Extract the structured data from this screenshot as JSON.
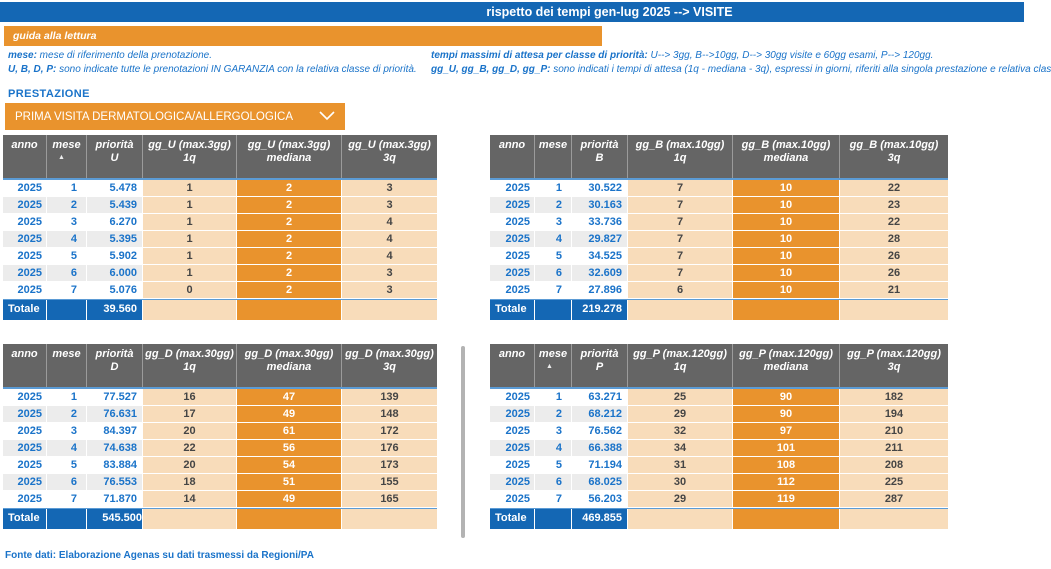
{
  "colors": {
    "blue": "#1467b4",
    "text_blue": "#1a73c9",
    "orange": "#e9932d",
    "peach": "#f8dcba",
    "header_gray": "#656565",
    "alt_row": "#ececec",
    "separator_blue": "#5b9bd5",
    "divider_gray": "#b3b3b3"
  },
  "title_bar": {
    "title": "rispetto dei tempi gen-lug 2025 --> VISITE"
  },
  "guide": {
    "band_label": "guida alla lettura",
    "left_lines": [
      {
        "bold": "mese:",
        "text": " mese di riferimento della prenotazione."
      },
      {
        "bold": "U, B, D, P:",
        "text": " sono indicate tutte le prenotazioni IN GARANZIA con la relativa classe di priorità."
      }
    ],
    "right_lines": [
      {
        "bold": "tempi massimi di attesa per classe di priorità:",
        "text": " U--> 3gg, B-->10gg, D--> 30gg visite e 60gg esami, P--> 120gg."
      },
      {
        "bold": "gg_U, gg_B, gg_D, gg_P:",
        "text": " sono indicati i tempi di attesa (1q - mediana - 3q), espressi in giorni, riferiti alla singola prestazione e relativa clas"
      }
    ]
  },
  "filter": {
    "label": "PRESTAZIONE",
    "selected": "PRIMA VISITA DERMATOLOGICA/ALLERGOLOGICA"
  },
  "tables": [
    {
      "id": "U",
      "headers": [
        {
          "label": "anno"
        },
        {
          "label": "mese",
          "sort_icon": true
        },
        {
          "label": "priorità",
          "sub": "U"
        },
        {
          "label": "gg_U (max.3gg)",
          "sub": "1q"
        },
        {
          "label": "gg_U (max.3gg)",
          "sub": "mediana"
        },
        {
          "label": "gg_U (max.3gg)",
          "sub": "3q"
        }
      ],
      "rows": [
        [
          "2025",
          "1",
          "5.478",
          "1",
          "2",
          "3"
        ],
        [
          "2025",
          "2",
          "5.439",
          "1",
          "2",
          "3"
        ],
        [
          "2025",
          "3",
          "6.270",
          "1",
          "2",
          "4"
        ],
        [
          "2025",
          "4",
          "5.395",
          "1",
          "2",
          "4"
        ],
        [
          "2025",
          "5",
          "5.902",
          "1",
          "2",
          "4"
        ],
        [
          "2025",
          "6",
          "6.000",
          "1",
          "2",
          "3"
        ],
        [
          "2025",
          "7",
          "5.076",
          "0",
          "2",
          "3"
        ]
      ],
      "total_label": "Totale",
      "total": "39.560"
    },
    {
      "id": "B",
      "headers": [
        {
          "label": "anno"
        },
        {
          "label": "mese"
        },
        {
          "label": "priorità",
          "sub": "B"
        },
        {
          "label": "gg_B (max.10gg)",
          "sub": "1q"
        },
        {
          "label": "gg_B (max.10gg)",
          "sub": "mediana"
        },
        {
          "label": "gg_B (max.10gg)",
          "sub": "3q"
        }
      ],
      "rows": [
        [
          "2025",
          "1",
          "30.522",
          "7",
          "10",
          "22"
        ],
        [
          "2025",
          "2",
          "30.163",
          "7",
          "10",
          "23"
        ],
        [
          "2025",
          "3",
          "33.736",
          "7",
          "10",
          "22"
        ],
        [
          "2025",
          "4",
          "29.827",
          "7",
          "10",
          "28"
        ],
        [
          "2025",
          "5",
          "34.525",
          "7",
          "10",
          "26"
        ],
        [
          "2025",
          "6",
          "32.609",
          "7",
          "10",
          "26"
        ],
        [
          "2025",
          "7",
          "27.896",
          "6",
          "10",
          "21"
        ]
      ],
      "total_label": "Totale",
      "total": "219.278"
    },
    {
      "id": "D",
      "headers": [
        {
          "label": "anno"
        },
        {
          "label": "mese"
        },
        {
          "label": "priorità",
          "sub": "D"
        },
        {
          "label": "gg_D (max.30gg)",
          "sub": "1q"
        },
        {
          "label": "gg_D (max.30gg)",
          "sub": "mediana"
        },
        {
          "label": "gg_D (max.30gg)",
          "sub": "3q"
        }
      ],
      "rows": [
        [
          "2025",
          "1",
          "77.527",
          "16",
          "47",
          "139"
        ],
        [
          "2025",
          "2",
          "76.631",
          "17",
          "49",
          "148"
        ],
        [
          "2025",
          "3",
          "84.397",
          "20",
          "61",
          "172"
        ],
        [
          "2025",
          "4",
          "74.638",
          "22",
          "56",
          "176"
        ],
        [
          "2025",
          "5",
          "83.884",
          "20",
          "54",
          "173"
        ],
        [
          "2025",
          "6",
          "76.553",
          "18",
          "51",
          "155"
        ],
        [
          "2025",
          "7",
          "71.870",
          "14",
          "49",
          "165"
        ]
      ],
      "total_label": "Totale",
      "total": "545.500"
    },
    {
      "id": "P",
      "headers": [
        {
          "label": "anno"
        },
        {
          "label": "mese",
          "sort_icon": true
        },
        {
          "label": "priorità",
          "sub": "P"
        },
        {
          "label": "gg_P (max.120gg)",
          "sub": "1q"
        },
        {
          "label": "gg_P (max.120gg)",
          "sub": "mediana"
        },
        {
          "label": "gg_P (max.120gg)",
          "sub": "3q"
        }
      ],
      "rows": [
        [
          "2025",
          "1",
          "63.271",
          "25",
          "90",
          "182"
        ],
        [
          "2025",
          "2",
          "68.212",
          "29",
          "90",
          "194"
        ],
        [
          "2025",
          "3",
          "76.562",
          "32",
          "97",
          "210"
        ],
        [
          "2025",
          "4",
          "66.388",
          "34",
          "101",
          "211"
        ],
        [
          "2025",
          "5",
          "71.194",
          "31",
          "108",
          "208"
        ],
        [
          "2025",
          "6",
          "68.025",
          "30",
          "112",
          "225"
        ],
        [
          "2025",
          "7",
          "56.203",
          "29",
          "119",
          "287"
        ]
      ],
      "total_label": "Totale",
      "total": "469.855"
    }
  ],
  "footer": "Fonte dati: Elaborazione Agenas su dati trasmessi da Regioni/PA"
}
